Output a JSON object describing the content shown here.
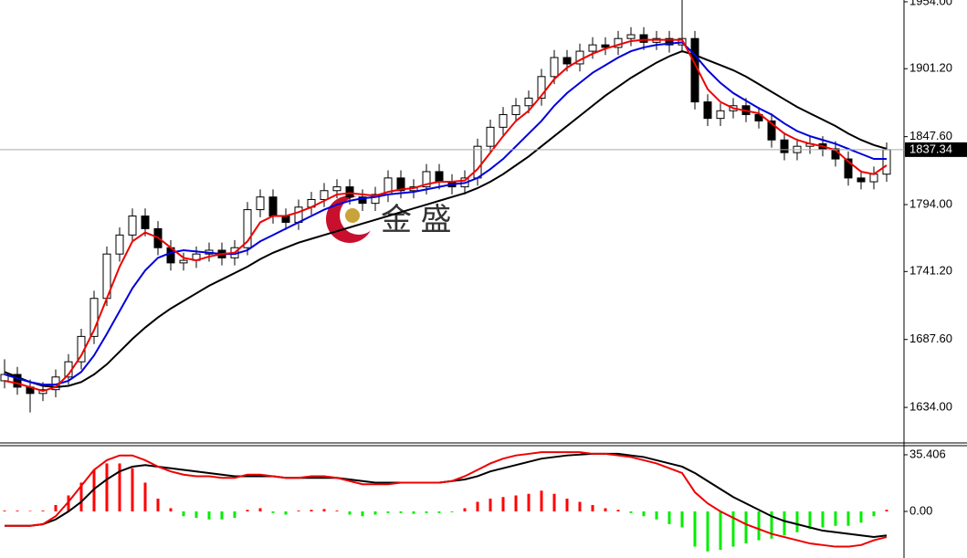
{
  "chart_data": [
    {
      "type": "candlestick",
      "watermark": "金 盛",
      "ylim": [
        1606.7,
        1955.4
      ],
      "yticks": [
        {
          "value": 1634,
          "label": "1634.00"
        },
        {
          "value": 1687.6,
          "label": "1687.60"
        },
        {
          "value": 1741.2,
          "label": "1741.20"
        },
        {
          "value": 1794,
          "label": "1794.00"
        },
        {
          "value": 1847.6,
          "label": "1847.60"
        },
        {
          "value": 1901.2,
          "label": "1901.20"
        },
        {
          "value": 1954,
          "label": "1954.00"
        }
      ],
      "last_price": 1837.34,
      "up_color": "#ffffff",
      "down_color": "#000000",
      "open": [
        1655,
        1660,
        1650,
        1645,
        1648,
        1658,
        1670,
        1690,
        1720,
        1755,
        1770,
        1785,
        1775,
        1760,
        1748,
        1750,
        1755,
        1758,
        1752,
        1760,
        1790,
        1800,
        1785,
        1780,
        1792,
        1798,
        1805,
        1808,
        1800,
        1795,
        1802,
        1815,
        1805,
        1808,
        1820,
        1812,
        1808,
        1815,
        1840,
        1855,
        1865,
        1872,
        1878,
        1895,
        1910,
        1905,
        1915,
        1920,
        1918,
        1925,
        1928,
        1922,
        1925,
        1920,
        1925,
        1875,
        1862,
        1868,
        1872,
        1865,
        1860,
        1845,
        1835,
        1840,
        1842,
        1838,
        1830,
        1815,
        1812,
        1818
      ],
      "high": [
        1672,
        1666,
        1656,
        1654,
        1664,
        1676,
        1696,
        1726,
        1761,
        1776,
        1791,
        1791,
        1781,
        1766,
        1756,
        1761,
        1764,
        1764,
        1766,
        1796,
        1806,
        1806,
        1791,
        1798,
        1804,
        1811,
        1814,
        1814,
        1806,
        1808,
        1821,
        1821,
        1814,
        1826,
        1826,
        1818,
        1821,
        1846,
        1861,
        1871,
        1878,
        1884,
        1901,
        1916,
        1916,
        1921,
        1926,
        1926,
        1931,
        1934,
        1934,
        1931,
        1931,
        1958,
        1931,
        1881,
        1874,
        1878,
        1878,
        1871,
        1866,
        1851,
        1846,
        1848,
        1848,
        1844,
        1836,
        1821,
        1824,
        1843
      ],
      "low": [
        1649,
        1644,
        1630,
        1639,
        1642,
        1652,
        1664,
        1684,
        1714,
        1749,
        1764,
        1769,
        1754,
        1742,
        1742,
        1744,
        1749,
        1746,
        1746,
        1754,
        1784,
        1779,
        1774,
        1774,
        1786,
        1792,
        1799,
        1794,
        1789,
        1789,
        1796,
        1799,
        1799,
        1802,
        1806,
        1802,
        1802,
        1809,
        1834,
        1849,
        1859,
        1866,
        1872,
        1889,
        1899,
        1899,
        1909,
        1912,
        1912,
        1919,
        1916,
        1916,
        1914,
        1914,
        1869,
        1856,
        1856,
        1862,
        1859,
        1854,
        1839,
        1829,
        1829,
        1834,
        1832,
        1824,
        1809,
        1806,
        1806,
        1812
      ],
      "close": [
        1660,
        1650,
        1645,
        1648,
        1658,
        1670,
        1690,
        1720,
        1755,
        1770,
        1785,
        1775,
        1760,
        1748,
        1750,
        1755,
        1758,
        1752,
        1760,
        1790,
        1800,
        1785,
        1780,
        1792,
        1798,
        1805,
        1808,
        1800,
        1795,
        1802,
        1815,
        1805,
        1808,
        1820,
        1812,
        1808,
        1815,
        1840,
        1855,
        1865,
        1872,
        1878,
        1895,
        1910,
        1905,
        1915,
        1920,
        1918,
        1925,
        1928,
        1922,
        1925,
        1920,
        1925,
        1875,
        1862,
        1868,
        1872,
        1865,
        1860,
        1845,
        1835,
        1840,
        1842,
        1838,
        1830,
        1815,
        1812,
        1818,
        1837.34
      ],
      "series": [
        {
          "color": "#000000",
          "values": [
            1662,
            1658,
            1654,
            1651,
            1650,
            1651,
            1654,
            1660,
            1668,
            1678,
            1688,
            1697,
            1705,
            1712,
            1718,
            1724,
            1730,
            1735,
            1740,
            1745,
            1751,
            1756,
            1760,
            1764,
            1767,
            1770,
            1773,
            1776,
            1779,
            1782,
            1785,
            1788,
            1791,
            1794,
            1797,
            1800,
            1803,
            1807,
            1812,
            1818,
            1825,
            1832,
            1840,
            1848,
            1856,
            1864,
            1872,
            1880,
            1887,
            1894,
            1900,
            1906,
            1911,
            1915,
            1912,
            1908,
            1904,
            1900,
            1895,
            1889,
            1883,
            1877,
            1871,
            1866,
            1861,
            1856,
            1850,
            1845,
            1841,
            1838
          ]
        },
        {
          "color": "#0000dd",
          "values": [
            1660,
            1657,
            1654,
            1652,
            1652,
            1655,
            1662,
            1675,
            1692,
            1710,
            1728,
            1742,
            1752,
            1756,
            1758,
            1757,
            1756,
            1755,
            1755,
            1758,
            1765,
            1770,
            1775,
            1780,
            1785,
            1790,
            1794,
            1797,
            1799,
            1800,
            1802,
            1803,
            1804,
            1806,
            1808,
            1810,
            1811,
            1815,
            1822,
            1830,
            1840,
            1850,
            1860,
            1872,
            1882,
            1890,
            1898,
            1904,
            1910,
            1915,
            1918,
            1920,
            1921,
            1922,
            1912,
            1900,
            1890,
            1882,
            1876,
            1870,
            1865,
            1858,
            1852,
            1848,
            1845,
            1842,
            1838,
            1834,
            1830,
            1830
          ]
        },
        {
          "color": "#ee0000",
          "values": [
            1655,
            1653,
            1650,
            1647,
            1650,
            1660,
            1675,
            1695,
            1720,
            1745,
            1765,
            1772,
            1768,
            1760,
            1752,
            1750,
            1753,
            1755,
            1756,
            1765,
            1780,
            1785,
            1785,
            1788,
            1792,
            1797,
            1802,
            1803,
            1802,
            1801,
            1804,
            1806,
            1807,
            1810,
            1812,
            1812,
            1813,
            1822,
            1835,
            1848,
            1860,
            1868,
            1880,
            1893,
            1902,
            1908,
            1913,
            1917,
            1920,
            1923,
            1924,
            1924,
            1924,
            1924,
            1905,
            1885,
            1875,
            1870,
            1868,
            1866,
            1858,
            1850,
            1845,
            1842,
            1840,
            1837,
            1828,
            1820,
            1818,
            1825
          ]
        }
      ]
    },
    {
      "type": "macd",
      "ylim": [
        -29.1,
        41.1
      ],
      "yticks": [
        35.406,
        {
          "value": 0,
          "label": "0.00"
        }
      ],
      "up_color": "#ff0000",
      "down_color": "#00ee00",
      "values": [
        0.5,
        0.5,
        0.3,
        0.5,
        4,
        10,
        18,
        26,
        30,
        30,
        27,
        18,
        8,
        2,
        -3,
        -4,
        -5,
        -5,
        -4,
        1,
        2,
        -1,
        -2,
        0.5,
        1,
        1.5,
        0.5,
        -2,
        -3,
        -2,
        -1,
        -1,
        -1.5,
        -1,
        -1,
        -0.5,
        2,
        6,
        8,
        9,
        10,
        11,
        13,
        11,
        8,
        6,
        4,
        2,
        1,
        -1,
        -3,
        -5,
        -8,
        -10,
        -22,
        -25,
        -24,
        -22,
        -20,
        -18,
        -17,
        -15,
        -13,
        -11,
        -10,
        -9,
        -9,
        -7,
        -3,
        1
      ],
      "series": [
        {
          "color": "#000000",
          "values": [
            -9,
            -9,
            -9,
            -8,
            -5,
            0,
            6,
            14,
            20,
            25,
            28,
            29,
            28,
            27,
            26,
            25,
            24,
            23,
            22,
            22,
            22,
            22,
            21,
            21,
            21,
            21,
            21,
            20,
            19,
            18,
            18,
            18,
            18,
            18,
            18,
            19,
            20,
            22,
            25,
            27,
            29,
            31,
            33,
            34,
            35,
            35.5,
            36,
            36,
            36,
            35,
            34,
            32,
            30,
            28,
            24,
            19,
            14,
            9,
            5,
            1,
            -3,
            -6,
            -8,
            -10,
            -12,
            -13,
            -14,
            -15,
            -16,
            -15
          ]
        },
        {
          "color": "#ee0000",
          "values": [
            -9,
            -9,
            -9,
            -8,
            -3,
            6,
            16,
            26,
            32,
            35,
            35,
            32,
            28,
            25,
            23,
            22,
            22,
            21,
            21,
            23,
            23,
            22,
            21,
            21,
            22,
            22,
            21,
            19,
            17,
            17,
            17,
            18,
            18,
            18,
            18,
            19,
            22,
            26,
            30,
            33,
            35,
            36,
            37,
            37,
            37,
            37,
            36,
            36,
            35,
            34,
            32,
            30,
            27,
            24,
            12,
            5,
            0,
            -4,
            -8,
            -11,
            -14,
            -16,
            -18,
            -20,
            -21,
            -22,
            -22,
            -21,
            -18,
            -16
          ]
        }
      ]
    }
  ]
}
